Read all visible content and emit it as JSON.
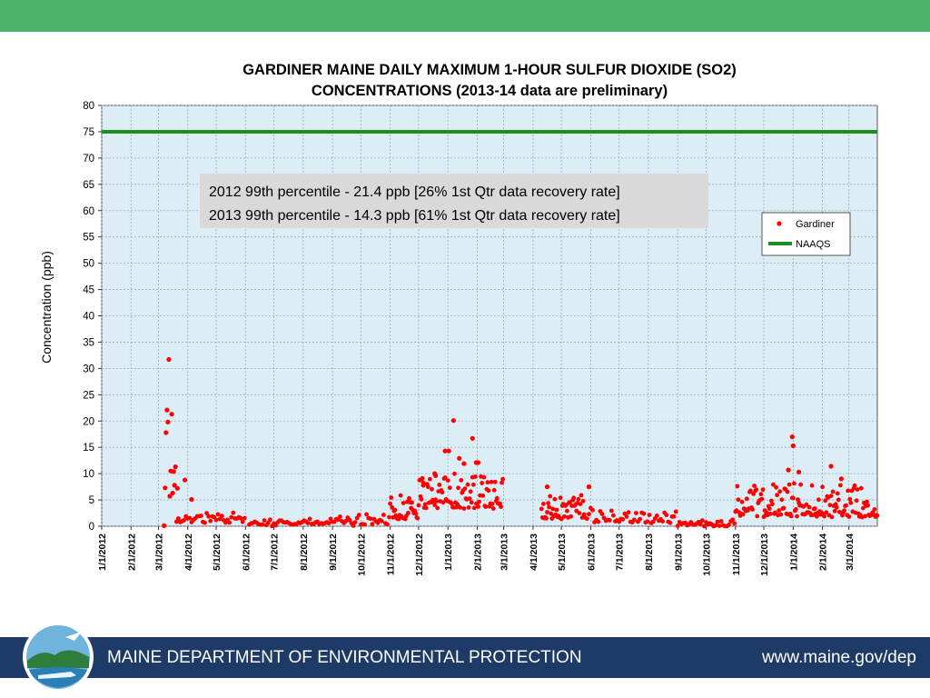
{
  "colors": {
    "top_band": "#4cb36c",
    "footer_bar": "#1d3b66",
    "plot_background": "#dcedf6",
    "grid": "#9aa9b5",
    "series_gardiner": "#ff0000",
    "series_naaqs": "#1e8c1e",
    "annotation_box": "#d9d9d9"
  },
  "footer": {
    "org": "MAINE DEPARTMENT OF ENVIRONMENTAL PROTECTION",
    "url": "www.maine.gov/dep",
    "logo_icon": "maine-dep-logo-icon"
  },
  "chart_data": {
    "type": "scatter",
    "title_line1": "GARDINER MAINE  DAILY MAXIMUM 1-HOUR SULFUR DIOXIDE (SO2)",
    "title_line2": "CONCENTRATIONS (2013-14 data are preliminary)",
    "ylabel": "Concentration (ppb)",
    "xlabel": "",
    "x_axis_type": "date",
    "xlim": [
      "2012-01-01",
      "2014-03-31"
    ],
    "ylim": [
      0,
      80
    ],
    "y_ticks": [
      0,
      5,
      10,
      15,
      20,
      25,
      30,
      35,
      40,
      45,
      50,
      55,
      60,
      65,
      70,
      75,
      80
    ],
    "x_ticks": [
      {
        "date": "2012-01-01",
        "label": "1/1/2012"
      },
      {
        "date": "2012-02-01",
        "label": "2/1/2012"
      },
      {
        "date": "2012-03-01",
        "label": "3/1/2012"
      },
      {
        "date": "2012-04-01",
        "label": "4/1/2012"
      },
      {
        "date": "2012-05-01",
        "label": "5/1/2012"
      },
      {
        "date": "2012-06-01",
        "label": "6/1/2012"
      },
      {
        "date": "2012-07-01",
        "label": "7/1/2012"
      },
      {
        "date": "2012-08-01",
        "label": "8/1/2012"
      },
      {
        "date": "2012-09-01",
        "label": "9/1/2012"
      },
      {
        "date": "2012-10-01",
        "label": "10/1/2012"
      },
      {
        "date": "2012-11-01",
        "label": "11/1/2012"
      },
      {
        "date": "2012-12-01",
        "label": "12/1/2012"
      },
      {
        "date": "2013-01-01",
        "label": "1/1/2013"
      },
      {
        "date": "2013-02-01",
        "label": "2/1/2013"
      },
      {
        "date": "2013-03-01",
        "label": "3/1/2013"
      },
      {
        "date": "2013-04-01",
        "label": "4/1/2013"
      },
      {
        "date": "2013-05-01",
        "label": "5/1/2013"
      },
      {
        "date": "2013-06-01",
        "label": "6/1/2013"
      },
      {
        "date": "2013-07-01",
        "label": "7/1/2013"
      },
      {
        "date": "2013-08-01",
        "label": "8/1/2013"
      },
      {
        "date": "2013-09-01",
        "label": "9/1/2013"
      },
      {
        "date": "2013-10-01",
        "label": "10/1/2013"
      },
      {
        "date": "2013-11-01",
        "label": "11/1/2013"
      },
      {
        "date": "2013-12-01",
        "label": "12/1/2013"
      },
      {
        "date": "2014-01-01",
        "label": "1/1/2014"
      },
      {
        "date": "2014-02-01",
        "label": "2/1/2014"
      },
      {
        "date": "2014-03-01",
        "label": "3/1/2014"
      }
    ],
    "grid": true,
    "legend_position": "right",
    "legend": [
      {
        "label": "Gardiner",
        "kind": "point"
      },
      {
        "label": "NAAQS",
        "kind": "line"
      }
    ],
    "annotations": [
      "2012 99th percentile - 21.4 ppb [26% 1st Qtr data recovery rate]",
      "2013 99th percentile - 14.3 ppb [61% 1st Qtr data recovery rate]"
    ],
    "series": [
      {
        "name": "NAAQS",
        "kind": "hline",
        "value": 75
      },
      {
        "name": "Gardiner",
        "kind": "points",
        "highlights": [
          {
            "x": "2012-03-07",
            "y": 0.1
          },
          {
            "x": "2012-03-08",
            "y": 7.3
          },
          {
            "x": "2012-03-09",
            "y": 17.8
          },
          {
            "x": "2012-03-10",
            "y": 22.1
          },
          {
            "x": "2012-03-11",
            "y": 19.8
          },
          {
            "x": "2012-03-12",
            "y": 31.7
          },
          {
            "x": "2012-03-13",
            "y": 5.7
          },
          {
            "x": "2012-03-14",
            "y": 10.5
          },
          {
            "x": "2012-03-15",
            "y": 21.3
          },
          {
            "x": "2012-03-16",
            "y": 6.3
          },
          {
            "x": "2012-03-17",
            "y": 10.4
          },
          {
            "x": "2012-03-18",
            "y": 7.8
          },
          {
            "x": "2012-03-19",
            "y": 11.3
          },
          {
            "x": "2012-03-21",
            "y": 7.2
          },
          {
            "x": "2012-03-29",
            "y": 8.8
          },
          {
            "x": "2012-04-05",
            "y": 5.1
          },
          {
            "x": "2012-12-04",
            "y": 8.9
          },
          {
            "x": "2012-12-06",
            "y": 7.8
          },
          {
            "x": "2012-12-18",
            "y": 10.0
          },
          {
            "x": "2012-12-19",
            "y": 9.6
          },
          {
            "x": "2012-12-29",
            "y": 14.3
          },
          {
            "x": "2013-01-02",
            "y": 14.3
          },
          {
            "x": "2013-01-07",
            "y": 20.1
          },
          {
            "x": "2013-01-13",
            "y": 12.9
          },
          {
            "x": "2013-01-18",
            "y": 11.9
          },
          {
            "x": "2013-01-27",
            "y": 16.7
          },
          {
            "x": "2013-01-31",
            "y": 12.1
          },
          {
            "x": "2013-02-02",
            "y": 12.1
          },
          {
            "x": "2013-04-16",
            "y": 7.5
          },
          {
            "x": "2013-05-30",
            "y": 7.5
          },
          {
            "x": "2013-12-27",
            "y": 10.7
          },
          {
            "x": "2013-12-31",
            "y": 17.0
          },
          {
            "x": "2014-01-01",
            "y": 15.3
          },
          {
            "x": "2014-01-07",
            "y": 10.3
          },
          {
            "x": "2014-02-10",
            "y": 11.4
          },
          {
            "x": "2014-02-21",
            "y": 9.0
          }
        ],
        "periods": [
          {
            "start": "2012-03-20",
            "end": "2012-05-31",
            "level": 0.9,
            "spread": 1.6,
            "step": 2
          },
          {
            "start": "2012-06-05",
            "end": "2012-08-31",
            "level": 0.3,
            "spread": 1.2,
            "step": 2
          },
          {
            "start": "2012-09-01",
            "end": "2012-10-31",
            "level": 0.4,
            "spread": 1.6,
            "step": 2
          },
          {
            "start": "2012-11-01",
            "end": "2012-11-30",
            "level": 1.5,
            "spread": 5.0,
            "step": 1
          },
          {
            "start": "2012-12-01",
            "end": "2013-02-28",
            "level": 3.5,
            "spread": 6.5,
            "step": 1
          },
          {
            "start": "2013-04-10",
            "end": "2013-05-25",
            "level": 1.5,
            "spread": 4.5,
            "step": 1
          },
          {
            "start": "2013-05-26",
            "end": "2013-08-31",
            "level": 0.7,
            "spread": 2.6,
            "step": 2
          },
          {
            "start": "2013-09-01",
            "end": "2013-10-31",
            "level": 0.2,
            "spread": 0.9,
            "step": 2
          },
          {
            "start": "2013-11-01",
            "end": "2014-03-31",
            "level": 2.0,
            "spread": 6.0,
            "step": 1
          }
        ]
      }
    ]
  }
}
